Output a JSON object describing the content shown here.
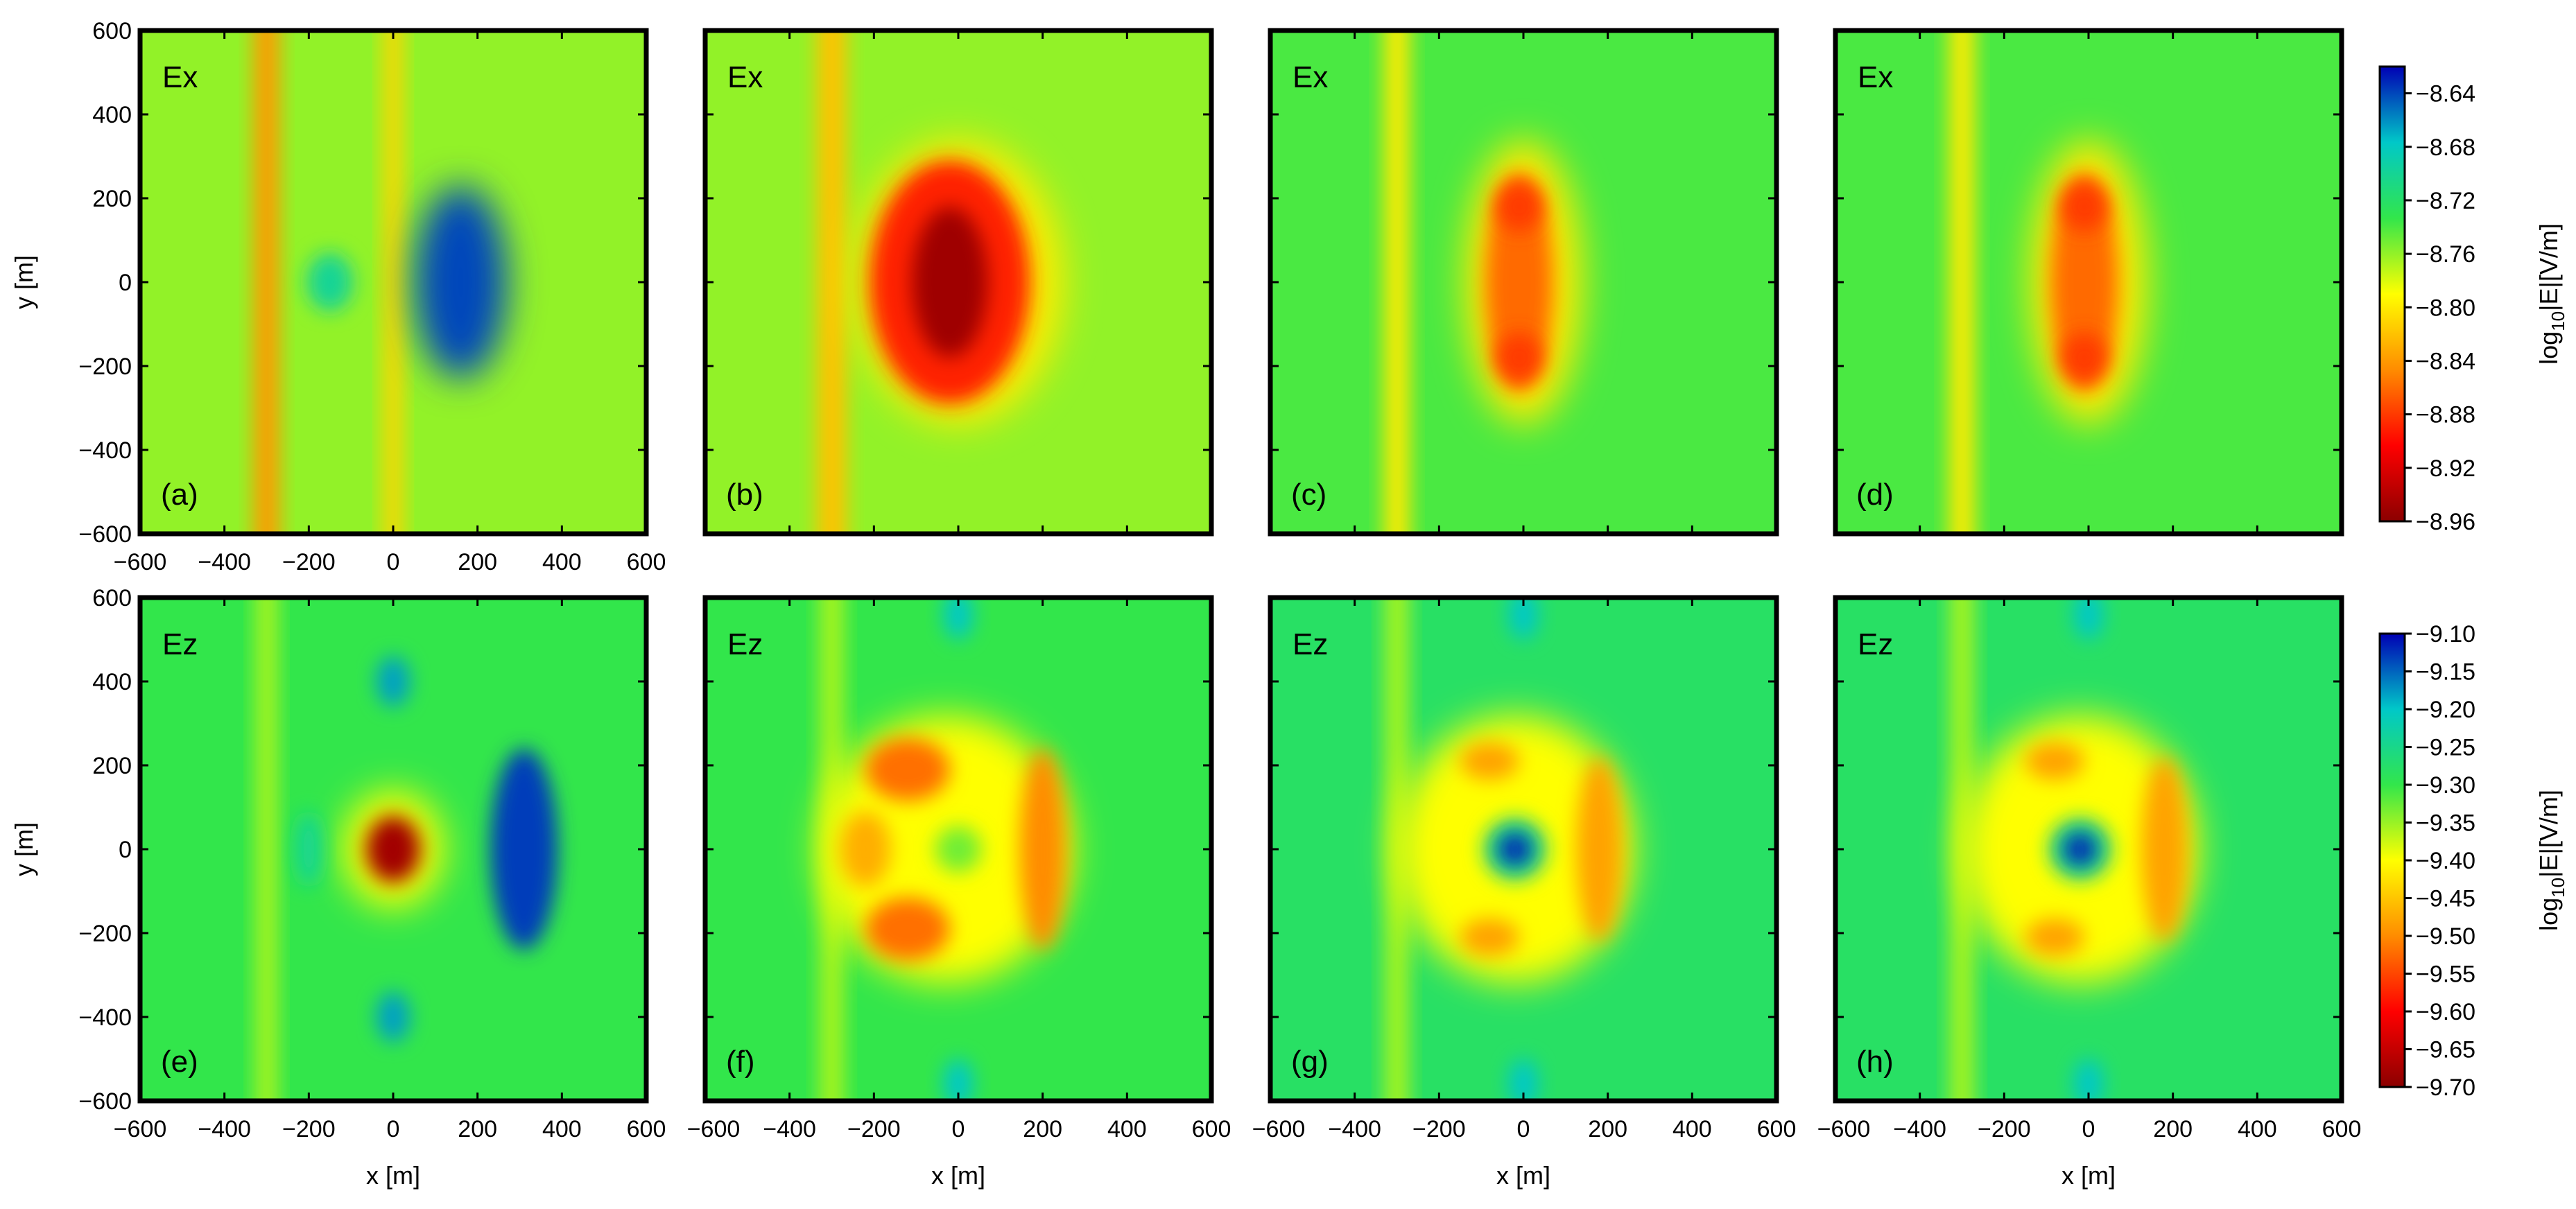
{
  "chart_data": [
    {
      "type": "heatmap",
      "panel": "(a)",
      "field": "Ex",
      "xlabel": "",
      "ylabel": "y [m]",
      "xlim": [
        -600,
        600
      ],
      "ylim": [
        -600,
        600
      ],
      "xticks": [
        "-600",
        "-400",
        "-200",
        "0",
        "200",
        "400",
        "600"
      ],
      "yticks": [
        "-600",
        "-400",
        "-200",
        "0",
        "200",
        "400",
        "600"
      ],
      "colorbar": "ex",
      "background_value": -8.76,
      "stripes": [
        {
          "x": -300,
          "width": 60,
          "value": -8.84
        },
        {
          "x": 0,
          "width": 45,
          "value": -8.81
        }
      ],
      "blobs": [
        {
          "x": 160,
          "y": 0,
          "rx": 110,
          "ry": 230,
          "value": -8.64
        },
        {
          "x": -150,
          "y": 0,
          "rx": 55,
          "ry": 70,
          "value": -8.7
        }
      ]
    },
    {
      "type": "heatmap",
      "panel": "(b)",
      "field": "Ex",
      "xlabel": "",
      "ylabel": "",
      "xlim": [
        -600,
        600
      ],
      "ylim": [
        -600,
        600
      ],
      "xticks": [],
      "yticks": [],
      "colorbar": "ex",
      "background_value": -8.76,
      "stripes": [
        {
          "x": -300,
          "width": 70,
          "value": -8.82
        }
      ],
      "blobs": [
        {
          "x": 0,
          "y": 0,
          "rx": 250,
          "ry": 340,
          "value": -8.8
        },
        {
          "x": -20,
          "y": 0,
          "rx": 190,
          "ry": 290,
          "value": -8.89
        },
        {
          "x": -20,
          "y": 0,
          "rx": 90,
          "ry": 180,
          "value": -8.95
        }
      ]
    },
    {
      "type": "heatmap",
      "panel": "(c)",
      "field": "Ex",
      "xlabel": "",
      "ylabel": "",
      "xlim": [
        -600,
        600
      ],
      "ylim": [
        -600,
        600
      ],
      "xticks": [],
      "yticks": [],
      "colorbar": "ex",
      "background_value": -8.74,
      "stripes": [
        {
          "x": -300,
          "width": 60,
          "value": -8.8
        }
      ],
      "blobs": [
        {
          "x": 0,
          "y": 0,
          "rx": 140,
          "ry": 340,
          "value": -8.8
        },
        {
          "x": -10,
          "y": 0,
          "rx": 80,
          "ry": 260,
          "value": -8.86
        },
        {
          "x": -10,
          "y": 180,
          "rx": 55,
          "ry": 60,
          "value": -8.88
        },
        {
          "x": -10,
          "y": -180,
          "rx": 55,
          "ry": 60,
          "value": -8.88
        }
      ]
    },
    {
      "type": "heatmap",
      "panel": "(d)",
      "field": "Ex",
      "xlabel": "",
      "ylabel": "",
      "xlim": [
        -600,
        600
      ],
      "ylim": [
        -600,
        600
      ],
      "xticks": [],
      "yticks": [],
      "colorbar": "ex",
      "background_value": -8.74,
      "stripes": [
        {
          "x": -300,
          "width": 60,
          "value": -8.8
        }
      ],
      "blobs": [
        {
          "x": 0,
          "y": 0,
          "rx": 140,
          "ry": 340,
          "value": -8.8
        },
        {
          "x": -10,
          "y": 0,
          "rx": 80,
          "ry": 260,
          "value": -8.86
        },
        {
          "x": -10,
          "y": 180,
          "rx": 55,
          "ry": 60,
          "value": -8.88
        },
        {
          "x": -10,
          "y": -180,
          "rx": 55,
          "ry": 60,
          "value": -8.88
        }
      ]
    },
    {
      "type": "heatmap",
      "panel": "(e)",
      "field": "Ez",
      "xlabel": "x [m]",
      "ylabel": "y [m]",
      "xlim": [
        -600,
        600
      ],
      "ylim": [
        -600,
        600
      ],
      "xticks": [
        "-600",
        "-400",
        "-200",
        "0",
        "200",
        "400",
        "600"
      ],
      "yticks": [
        "-600",
        "-400",
        "-200",
        "0",
        "200",
        "400",
        "600"
      ],
      "colorbar": "ez",
      "background_value": -9.3,
      "stripes": [
        {
          "x": -300,
          "width": 50,
          "value": -9.36
        }
      ],
      "blobs": [
        {
          "x": 0,
          "y": 0,
          "rx": 120,
          "ry": 140,
          "value": -9.4
        },
        {
          "x": 0,
          "y": 0,
          "rx": 65,
          "ry": 80,
          "value": -9.68
        },
        {
          "x": 310,
          "y": 0,
          "rx": 80,
          "ry": 240,
          "value": -9.13
        },
        {
          "x": 0,
          "y": 400,
          "rx": 40,
          "ry": 60,
          "value": -9.18
        },
        {
          "x": 0,
          "y": -400,
          "rx": 40,
          "ry": 60,
          "value": -9.18
        },
        {
          "x": -200,
          "y": 0,
          "rx": 30,
          "ry": 90,
          "value": -9.24
        }
      ]
    },
    {
      "type": "heatmap",
      "panel": "(f)",
      "field": "Ez",
      "xlabel": "x [m]",
      "ylabel": "",
      "xlim": [
        -600,
        600
      ],
      "ylim": [
        -600,
        600
      ],
      "xticks": [
        "-600",
        "-400",
        "-200",
        "0",
        "200",
        "400",
        "600"
      ],
      "yticks": [],
      "colorbar": "ez",
      "background_value": -9.3,
      "stripes": [
        {
          "x": -300,
          "width": 55,
          "value": -9.36
        }
      ],
      "blobs": [
        {
          "x": -30,
          "y": 0,
          "rx": 300,
          "ry": 320,
          "value": -9.4
        },
        {
          "x": -120,
          "y": 190,
          "rx": 100,
          "ry": 75,
          "value": -9.52
        },
        {
          "x": -120,
          "y": -190,
          "rx": 100,
          "ry": 75,
          "value": -9.52
        },
        {
          "x": -220,
          "y": 0,
          "rx": 60,
          "ry": 90,
          "value": -9.47
        },
        {
          "x": 200,
          "y": 0,
          "rx": 55,
          "ry": 240,
          "value": -9.5
        },
        {
          "x": 0,
          "y": 0,
          "rx": 55,
          "ry": 55,
          "value": -9.33
        },
        {
          "x": 0,
          "y": 560,
          "rx": 35,
          "ry": 60,
          "value": -9.2
        },
        {
          "x": 0,
          "y": -560,
          "rx": 35,
          "ry": 60,
          "value": -9.2
        }
      ]
    },
    {
      "type": "heatmap",
      "panel": "(g)",
      "field": "Ez",
      "xlabel": "x [m]",
      "ylabel": "",
      "xlim": [
        -600,
        600
      ],
      "ylim": [
        -600,
        600
      ],
      "xticks": [
        "-600",
        "-400",
        "-200",
        "0",
        "200",
        "400",
        "600"
      ],
      "yticks": [],
      "colorbar": "ez",
      "background_value": -9.28,
      "stripes": [
        {
          "x": -300,
          "width": 55,
          "value": -9.36
        }
      ],
      "blobs": [
        {
          "x": -20,
          "y": 0,
          "rx": 280,
          "ry": 320,
          "value": -9.4
        },
        {
          "x": -80,
          "y": 210,
          "rx": 70,
          "ry": 45,
          "value": -9.48
        },
        {
          "x": -80,
          "y": -210,
          "rx": 70,
          "ry": 45,
          "value": -9.48
        },
        {
          "x": 180,
          "y": 0,
          "rx": 55,
          "ry": 220,
          "value": -9.48
        },
        {
          "x": -20,
          "y": 0,
          "rx": 75,
          "ry": 75,
          "value": -9.25
        },
        {
          "x": -20,
          "y": 0,
          "rx": 38,
          "ry": 38,
          "value": -9.12
        },
        {
          "x": 0,
          "y": 560,
          "rx": 35,
          "ry": 60,
          "value": -9.2
        },
        {
          "x": 0,
          "y": -560,
          "rx": 35,
          "ry": 60,
          "value": -9.2
        }
      ]
    },
    {
      "type": "heatmap",
      "panel": "(h)",
      "field": "Ez",
      "xlabel": "x [m]",
      "ylabel": "",
      "xlim": [
        -600,
        600
      ],
      "ylim": [
        -600,
        600
      ],
      "xticks": [
        "-600",
        "-400",
        "-200",
        "0",
        "200",
        "400",
        "600"
      ],
      "yticks": [],
      "colorbar": "ez",
      "background_value": -9.28,
      "stripes": [
        {
          "x": -300,
          "width": 55,
          "value": -9.36
        }
      ],
      "blobs": [
        {
          "x": -20,
          "y": 0,
          "rx": 280,
          "ry": 320,
          "value": -9.4
        },
        {
          "x": -80,
          "y": 210,
          "rx": 70,
          "ry": 45,
          "value": -9.48
        },
        {
          "x": -80,
          "y": -210,
          "rx": 70,
          "ry": 45,
          "value": -9.48
        },
        {
          "x": 180,
          "y": 0,
          "rx": 55,
          "ry": 220,
          "value": -9.48
        },
        {
          "x": -20,
          "y": 0,
          "rx": 75,
          "ry": 75,
          "value": -9.25
        },
        {
          "x": -20,
          "y": 0,
          "rx": 38,
          "ry": 38,
          "value": -9.12
        },
        {
          "x": 0,
          "y": 560,
          "rx": 35,
          "ry": 60,
          "value": -9.2
        },
        {
          "x": 0,
          "y": -560,
          "rx": 35,
          "ry": 60,
          "value": -9.2
        }
      ]
    }
  ],
  "colorbars": {
    "ex": {
      "label": "log10|E|[V/m]",
      "label_main": "log",
      "label_sub": "10",
      "label_rest": "|E|[V/m]",
      "min": -8.96,
      "max": -8.62,
      "ticks": [
        "-8.64",
        "-8.68",
        "-8.72",
        "-8.76",
        "-8.80",
        "-8.84",
        "-8.88",
        "-8.92",
        "-8.96"
      ]
    },
    "ez": {
      "label": "log10|E|[V/m]",
      "label_main": "log",
      "label_sub": "10",
      "label_rest": "|E|[V/m]",
      "min": -9.7,
      "max": -9.1,
      "ticks": [
        "-9.10",
        "-9.15",
        "-9.20",
        "-9.25",
        "-9.30",
        "-9.35",
        "-9.40",
        "-9.45",
        "-9.50",
        "-9.55",
        "-9.60",
        "-9.65",
        "-9.70"
      ]
    }
  },
  "colormap": [
    "#8b0000",
    "#ff0000",
    "#ff8c00",
    "#ffff00",
    "#32e64b",
    "#00c8c8",
    "#0000b4"
  ]
}
